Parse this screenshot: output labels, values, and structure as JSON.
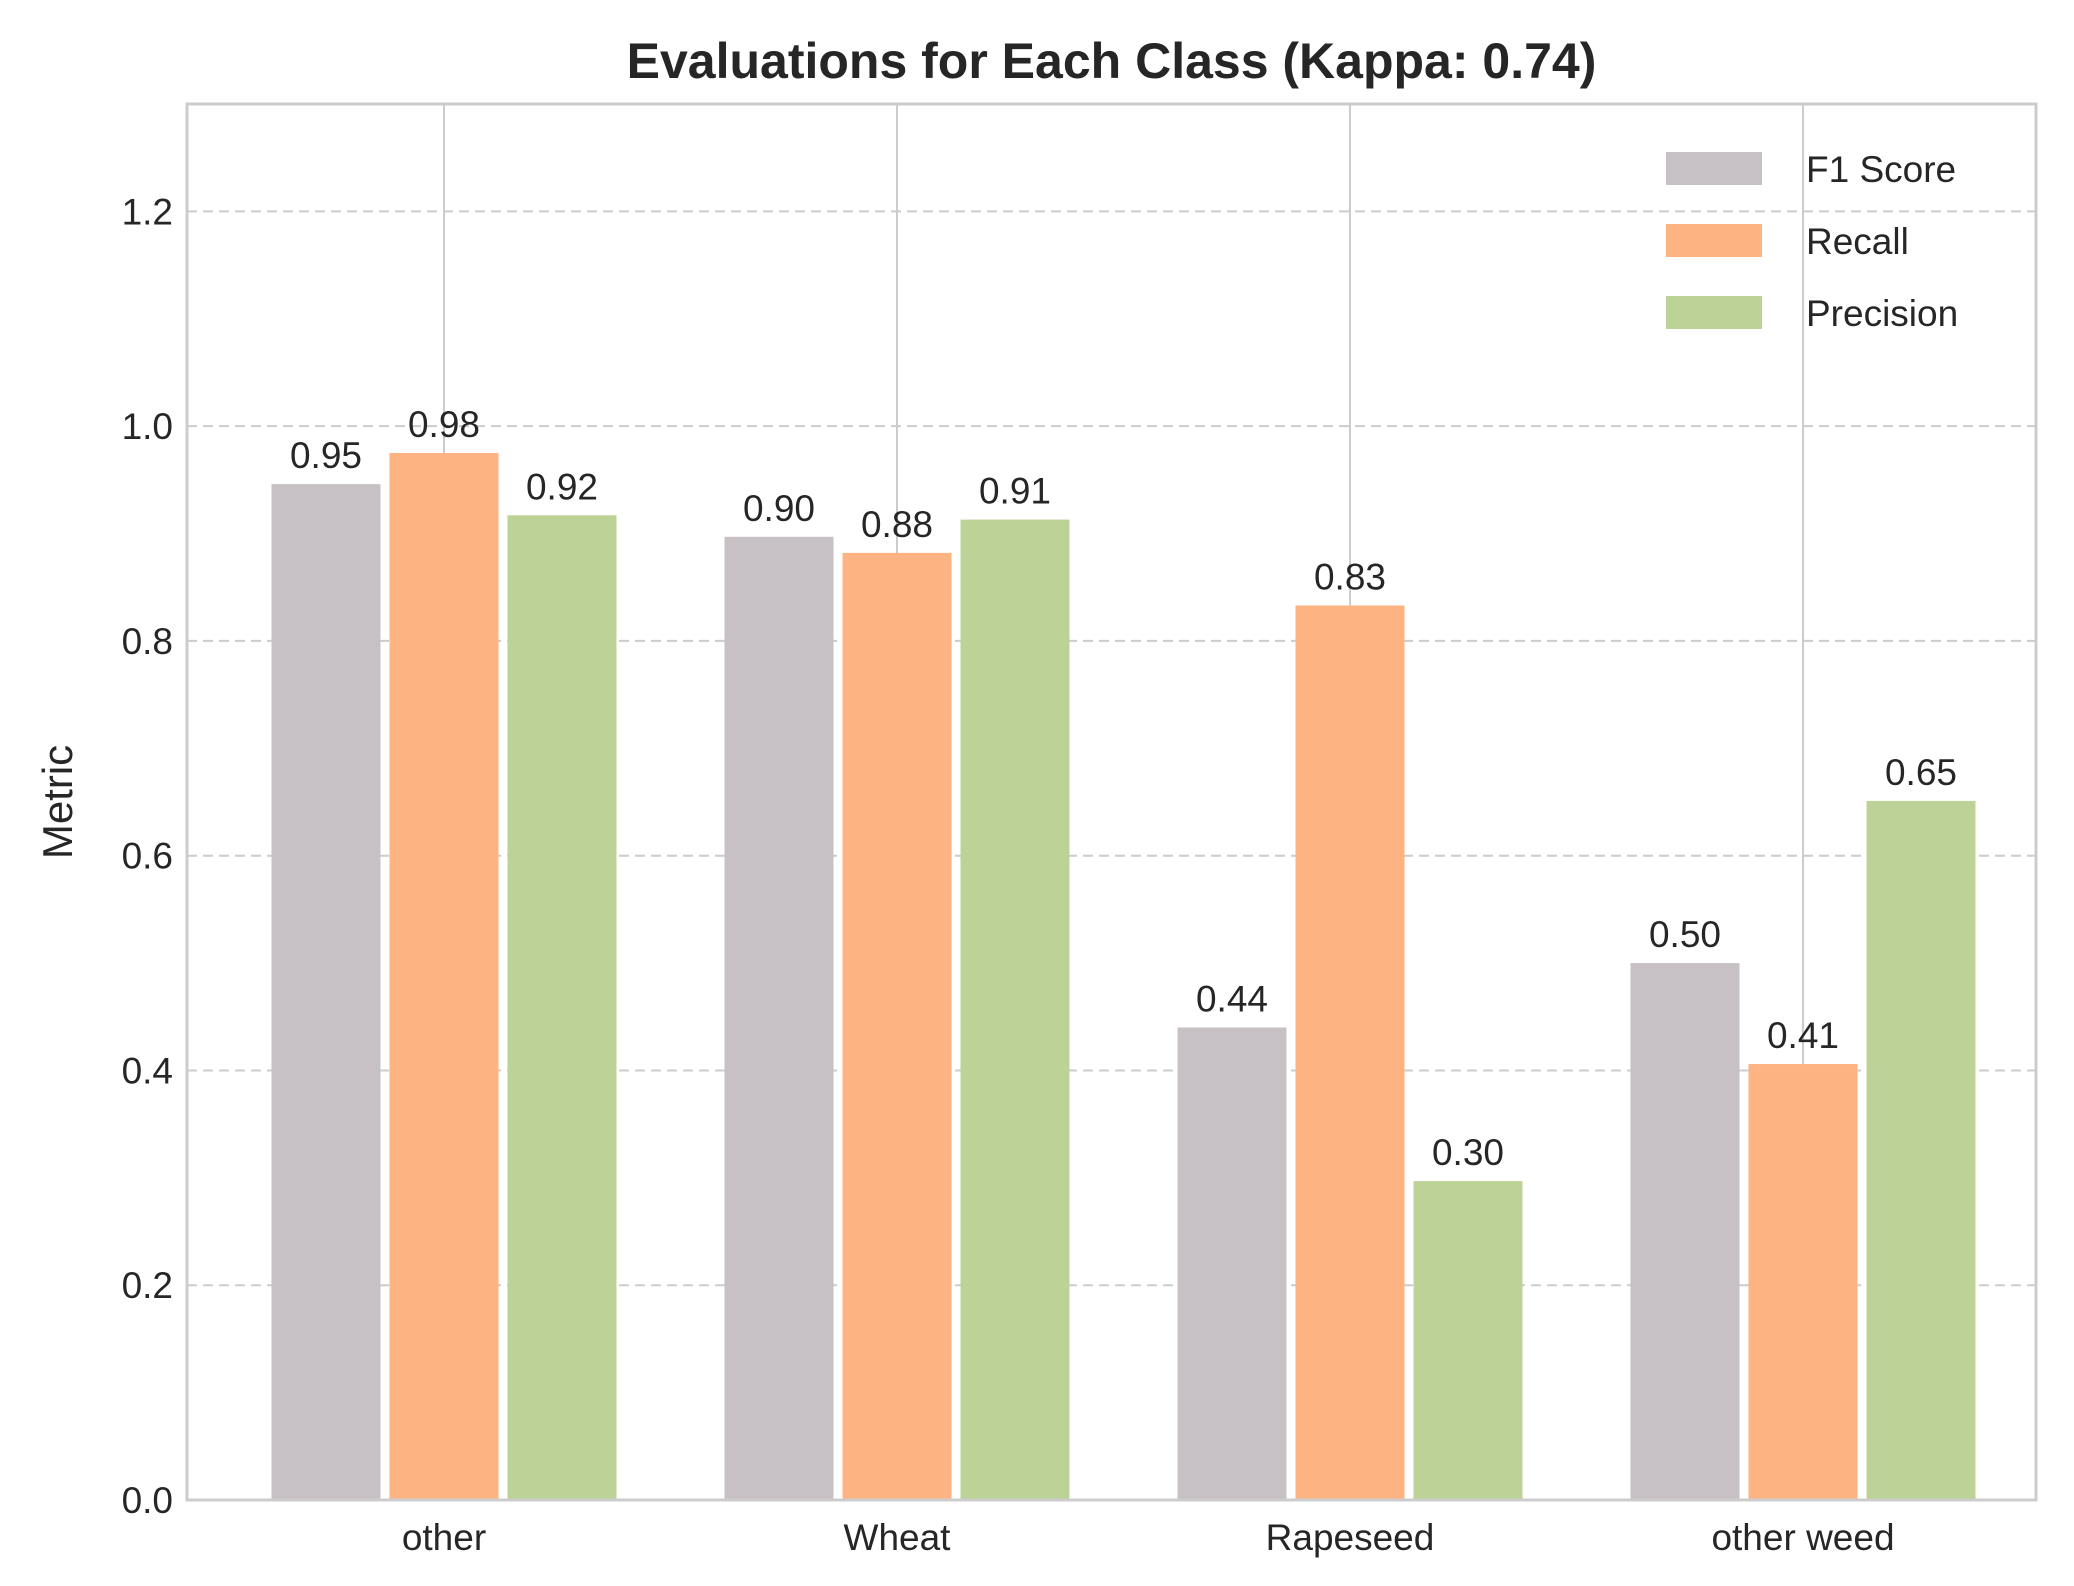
{
  "chart_data": {
    "type": "bar",
    "title": "Evaluations for Each Class (Kappa: 0.74)",
    "xlabel": "",
    "ylabel": "Metric",
    "categories": [
      "other",
      "Wheat",
      "Rapeseed",
      "other weed"
    ],
    "series": [
      {
        "name": "F1 Score",
        "color": "#c7c1c6",
        "values": [
          0.946,
          0.897,
          0.44,
          0.5
        ],
        "labels": [
          "0.95",
          "0.90",
          "0.44",
          "0.50"
        ]
      },
      {
        "name": "Recall",
        "color": "#feb383",
        "values": [
          0.975,
          0.882,
          0.833,
          0.406
        ],
        "labels": [
          "0.98",
          "0.88",
          "0.83",
          "0.41"
        ]
      },
      {
        "name": "Precision",
        "color": "#bdd296",
        "values": [
          0.917,
          0.913,
          0.297,
          0.651
        ],
        "labels": [
          "0.92",
          "0.91",
          "0.30",
          "0.65"
        ]
      }
    ],
    "yticks": [
      "0.0",
      "0.2",
      "0.4",
      "0.6",
      "0.8",
      "1.0",
      "1.2"
    ],
    "ylim": [
      0,
      1.3
    ],
    "grid": true,
    "legend_position": "top-right"
  }
}
